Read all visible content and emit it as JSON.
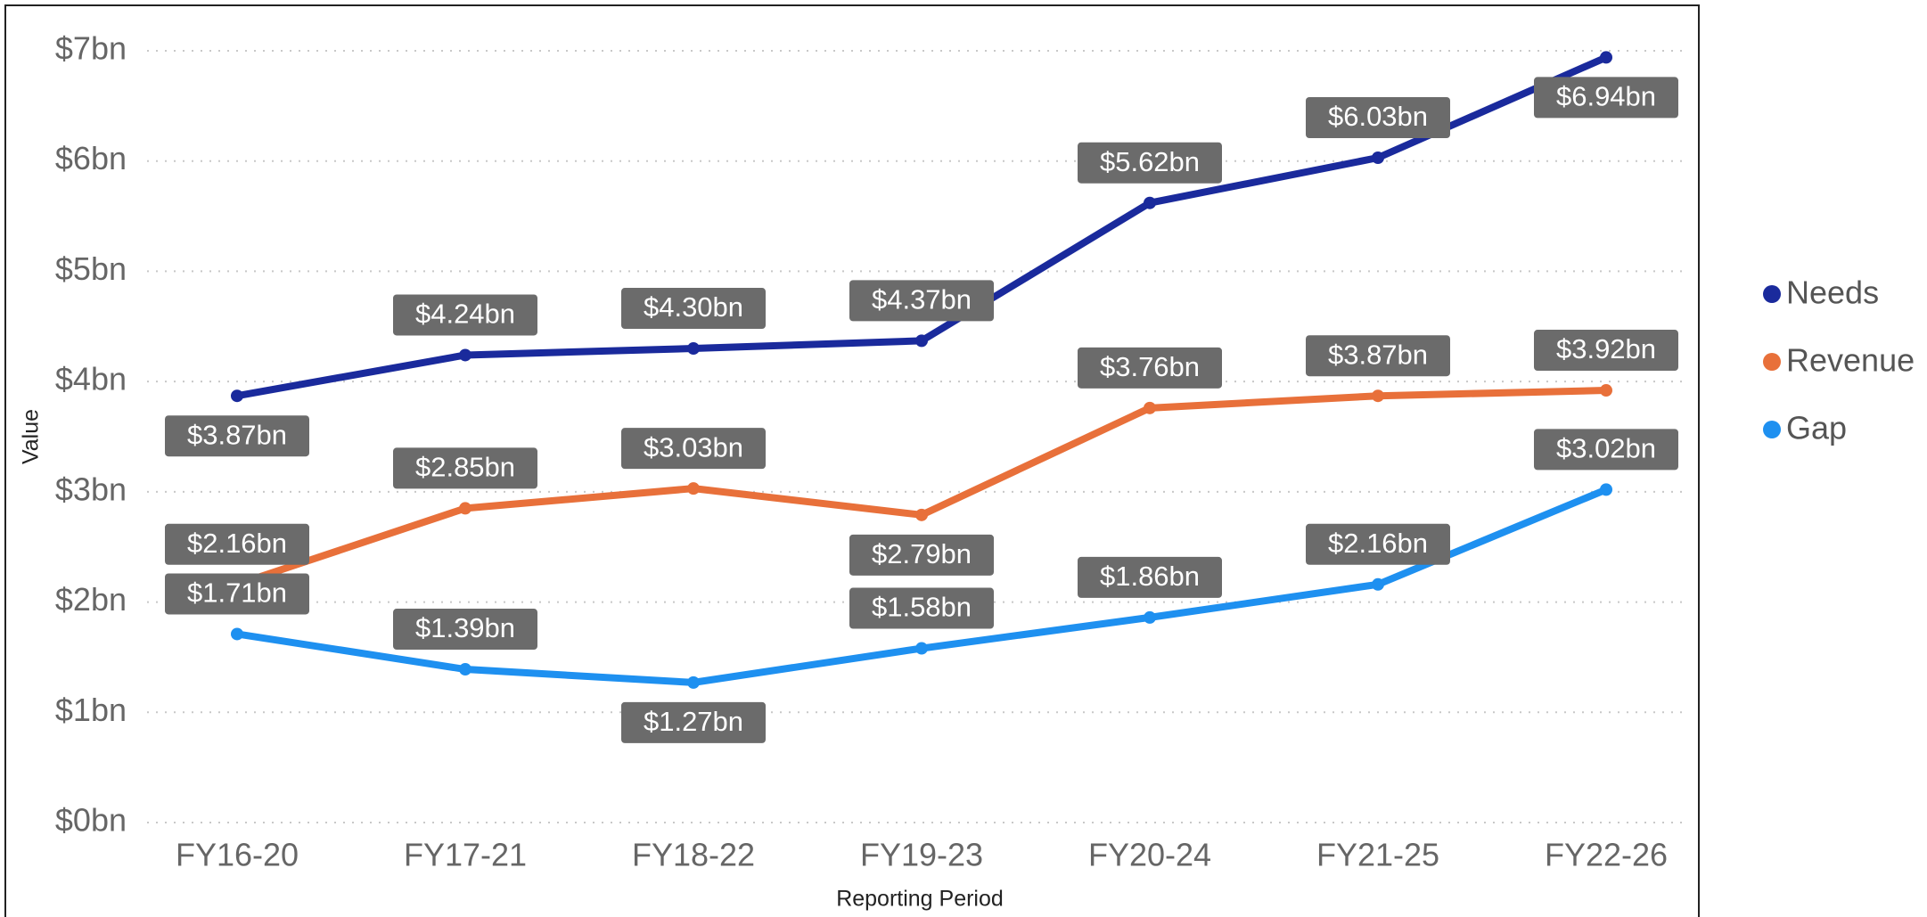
{
  "chart_data": {
    "type": "line",
    "x_label": "Reporting Period",
    "y_label": "Value",
    "categories": [
      "FY16-20",
      "FY17-21",
      "FY18-22",
      "FY19-23",
      "FY20-24",
      "FY21-25",
      "FY22-26"
    ],
    "series": [
      {
        "name": "Needs",
        "color": "#1a2a9c",
        "values": [
          3.87,
          4.24,
          4.3,
          4.37,
          5.62,
          6.03,
          6.94
        ],
        "value_labels": [
          "$3.87bn",
          "$4.24bn",
          "$4.30bn",
          "$4.37bn",
          "$5.62bn",
          "$6.03bn",
          "$6.94bn"
        ]
      },
      {
        "name": "Revenue",
        "color": "#e8703a",
        "values": [
          2.16,
          2.85,
          3.03,
          2.79,
          3.76,
          3.87,
          3.92
        ],
        "value_labels": [
          "$2.16bn",
          "$2.85bn",
          "$3.03bn",
          "$2.79bn",
          "$3.76bn",
          "$3.87bn",
          "$3.92bn"
        ]
      },
      {
        "name": "Gap",
        "color": "#1e90f0",
        "values": [
          1.71,
          1.39,
          1.27,
          1.58,
          1.86,
          2.16,
          3.02
        ],
        "value_labels": [
          "$1.71bn",
          "$1.39bn",
          "$1.27bn",
          "$1.58bn",
          "$1.86bn",
          "$2.16bn",
          "$3.02bn"
        ]
      }
    ],
    "ylim": [
      0,
      7.35
    ],
    "yticks": [
      {
        "value": 0,
        "label": "$0bn"
      },
      {
        "value": 1,
        "label": "$1bn"
      },
      {
        "value": 2,
        "label": "$2bn"
      },
      {
        "value": 3,
        "label": "$3bn"
      },
      {
        "value": 4,
        "label": "$4bn"
      },
      {
        "value": 5,
        "label": "$5bn"
      },
      {
        "value": 6,
        "label": "$6bn"
      },
      {
        "value": 7,
        "label": "$7bn"
      }
    ],
    "grid": true,
    "legend": "right"
  }
}
